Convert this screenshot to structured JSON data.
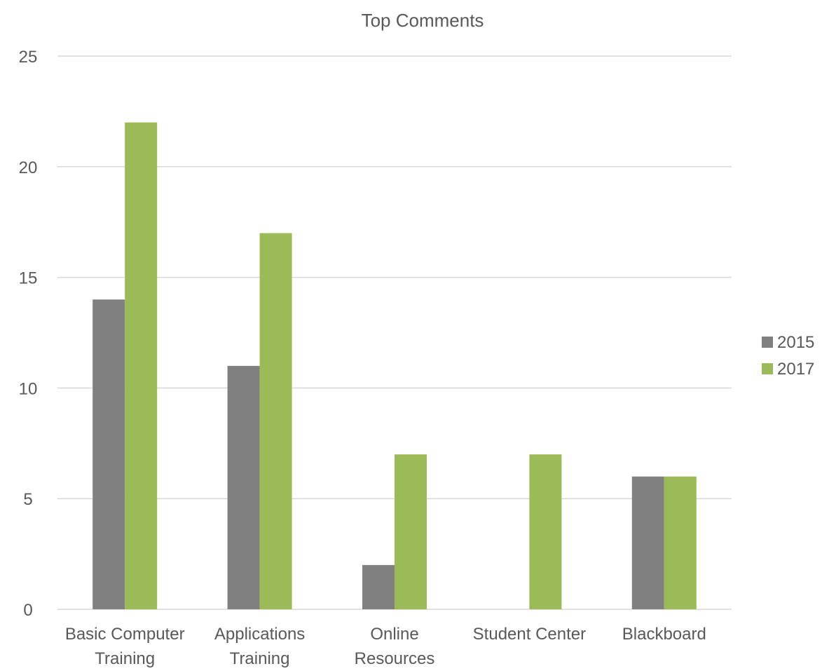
{
  "chart_data": {
    "type": "bar",
    "title": "Top Comments",
    "xlabel": "",
    "ylabel": "",
    "categories": [
      [
        "Basic Computer",
        "Training"
      ],
      [
        "Applications",
        "Training"
      ],
      [
        "Online",
        "Resources"
      ],
      [
        "Student Center"
      ],
      [
        "Blackboard"
      ]
    ],
    "series": [
      {
        "name": "2015",
        "color": "#808080",
        "values": [
          14,
          11,
          2,
          0,
          6
        ]
      },
      {
        "name": "2017",
        "color": "#9bbb59",
        "values": [
          22,
          17,
          7,
          7,
          6
        ]
      }
    ],
    "ylim": [
      0,
      25
    ],
    "yticks": [
      0,
      5,
      10,
      15,
      20,
      25
    ],
    "grid": true,
    "legend_position": "right"
  }
}
